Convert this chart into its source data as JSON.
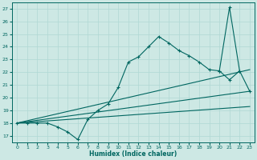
{
  "xlabel": "Humidex (Indice chaleur)",
  "bg_color": "#cde8e4",
  "line_color": "#006660",
  "grid_color": "#b0d8d4",
  "xlim": [
    -0.5,
    23.5
  ],
  "ylim": [
    16.5,
    27.5
  ],
  "x_ticks": [
    0,
    1,
    2,
    3,
    4,
    5,
    6,
    7,
    8,
    9,
    10,
    11,
    12,
    13,
    14,
    15,
    16,
    17,
    18,
    19,
    20,
    21,
    22,
    23
  ],
  "y_ticks": [
    17,
    18,
    19,
    20,
    21,
    22,
    23,
    24,
    25,
    26,
    27
  ],
  "main_series": {
    "x": [
      0,
      1,
      2,
      3,
      4,
      5,
      6,
      7,
      8,
      9,
      10,
      11,
      12,
      13,
      14,
      15,
      16,
      17,
      18,
      19,
      20,
      21,
      22,
      23
    ],
    "y": [
      18.0,
      18.0,
      18.0,
      18.0,
      17.7,
      17.3,
      16.7,
      18.3,
      19.0,
      19.5,
      20.8,
      22.8,
      23.2,
      24.0,
      24.8,
      24.3,
      23.7,
      23.3,
      22.8,
      22.2,
      22.1,
      21.4,
      22.1,
      20.5
    ]
  },
  "spike_series": {
    "x": [
      20,
      21,
      22
    ],
    "y": [
      22.1,
      27.1,
      22.1
    ]
  },
  "line1": {
    "x": [
      0,
      23
    ],
    "y": [
      18.0,
      22.2
    ]
  },
  "line2": {
    "x": [
      0,
      23
    ],
    "y": [
      18.0,
      20.5
    ]
  },
  "line3": {
    "x": [
      0,
      23
    ],
    "y": [
      18.0,
      19.3
    ]
  }
}
